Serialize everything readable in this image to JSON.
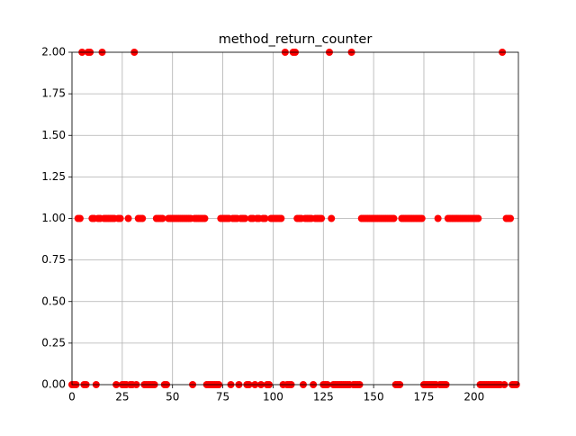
{
  "chart_data": {
    "type": "scatter",
    "title": "method_return_counter",
    "x": [
      0,
      1,
      2,
      3,
      4,
      5,
      6,
      7,
      8,
      9,
      10,
      11,
      12,
      13,
      14,
      15,
      16,
      17,
      18,
      19,
      20,
      21,
      22,
      23,
      24,
      25,
      26,
      27,
      28,
      29,
      30,
      31,
      32,
      33,
      34,
      35,
      36,
      37,
      38,
      39,
      40,
      41,
      42,
      43,
      44,
      45,
      46,
      47,
      48,
      49,
      50,
      51,
      52,
      53,
      54,
      55,
      56,
      57,
      58,
      59,
      60,
      61,
      62,
      63,
      64,
      65,
      66,
      67,
      68,
      69,
      70,
      71,
      72,
      73,
      74,
      75,
      76,
      77,
      78,
      79,
      80,
      81,
      82,
      83,
      84,
      85,
      86,
      87,
      88,
      89,
      90,
      91,
      92,
      93,
      94,
      95,
      96,
      97,
      98,
      99,
      100,
      101,
      102,
      103,
      104,
      105,
      106,
      107,
      108,
      109,
      110,
      111,
      112,
      113,
      114,
      115,
      116,
      117,
      118,
      119,
      120,
      121,
      122,
      123,
      124,
      125,
      126,
      127,
      128,
      129,
      130,
      131,
      132,
      133,
      134,
      135,
      136,
      137,
      138,
      139,
      140,
      141,
      142,
      143,
      144,
      145,
      146,
      147,
      148,
      149,
      150,
      151,
      152,
      153,
      154,
      155,
      156,
      157,
      158,
      159,
      160,
      161,
      162,
      163,
      164,
      165,
      166,
      167,
      168,
      169,
      170,
      171,
      172,
      173,
      174,
      175,
      176,
      177,
      178,
      179,
      180,
      181,
      182,
      183,
      184,
      185,
      186,
      187,
      188,
      189,
      190,
      191,
      192,
      193,
      194,
      195,
      196,
      197,
      198,
      199,
      200,
      201,
      202,
      203,
      204,
      205,
      206,
      207,
      208,
      209,
      210,
      211,
      212,
      213,
      214,
      215,
      216,
      217,
      218,
      219,
      220,
      221
    ],
    "values": [
      0,
      0,
      0,
      1,
      1,
      2,
      0,
      0,
      2,
      2,
      1,
      1,
      0,
      1,
      1,
      2,
      1,
      1,
      1,
      1,
      1,
      1,
      0,
      1,
      1,
      0,
      0,
      0,
      1,
      0,
      0,
      2,
      0,
      1,
      1,
      1,
      0,
      0,
      0,
      0,
      0,
      0,
      1,
      1,
      1,
      1,
      0,
      0,
      1,
      1,
      1,
      1,
      1,
      1,
      1,
      1,
      1,
      1,
      1,
      1,
      0,
      1,
      1,
      1,
      1,
      1,
      1,
      0,
      0,
      0,
      0,
      0,
      0,
      0,
      1,
      1,
      1,
      1,
      1,
      0,
      1,
      1,
      1,
      0,
      1,
      1,
      1,
      0,
      0,
      1,
      1,
      0,
      1,
      1,
      0,
      1,
      1,
      0,
      0,
      1,
      1,
      1,
      1,
      1,
      1,
      0,
      2,
      0,
      0,
      0,
      2,
      2,
      1,
      1,
      1,
      0,
      1,
      1,
      1,
      1,
      0,
      1,
      1,
      1,
      1,
      0,
      0,
      0,
      2,
      1,
      0,
      0,
      0,
      0,
      0,
      0,
      0,
      0,
      0,
      2,
      0,
      0,
      0,
      0,
      1,
      1,
      1,
      1,
      1,
      1,
      1,
      1,
      1,
      1,
      1,
      1,
      1,
      1,
      1,
      1,
      1,
      0,
      0,
      0,
      1,
      1,
      1,
      1,
      1,
      1,
      1,
      1,
      1,
      1,
      1,
      0,
      0,
      0,
      0,
      0,
      0,
      0,
      1,
      0,
      0,
      0,
      0,
      1,
      1,
      1,
      1,
      1,
      1,
      1,
      1,
      1,
      1,
      1,
      1,
      1,
      1,
      1,
      1,
      0,
      0,
      0,
      0,
      0,
      0,
      0,
      0,
      0,
      0,
      0,
      2,
      0,
      1,
      1,
      1,
      0,
      0,
      0
    ],
    "color": "#ff0000",
    "xlim": [
      0,
      222
    ],
    "ylim": [
      0,
      2
    ],
    "xticks": [
      0,
      25,
      50,
      75,
      100,
      125,
      150,
      175,
      200
    ],
    "yticks": [
      {
        "value": 0,
        "label": "0.00"
      },
      {
        "value": 0.25,
        "label": "0.25"
      },
      {
        "value": 0.5,
        "label": "0.50"
      },
      {
        "value": 0.75,
        "label": "0.75"
      },
      {
        "value": 1,
        "label": "1.00"
      },
      {
        "value": 1.25,
        "label": "1.25"
      },
      {
        "value": 1.5,
        "label": "1.50"
      },
      {
        "value": 1.75,
        "label": "1.75"
      },
      {
        "value": 2,
        "label": "2.00"
      }
    ],
    "grid": true
  }
}
